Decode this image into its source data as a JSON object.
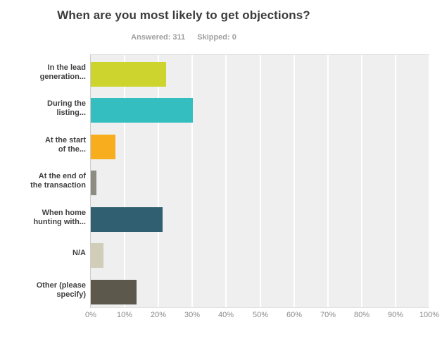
{
  "chart_data": {
    "type": "bar",
    "orientation": "horizontal",
    "title": "When are you most likely to get objections?",
    "answered": "Answered: 311",
    "skipped": "Skipped: 0",
    "categories": [
      "In the lead\ngeneration...",
      "During the\nlisting...",
      "At the start\nof the...",
      "At the end of\nthe transaction",
      "When home\nhunting with...",
      "N/A",
      "Other (please\nspecify)"
    ],
    "values": [
      22.2,
      30.2,
      7.2,
      1.6,
      21.2,
      3.8,
      13.5
    ],
    "bar_colors": [
      "#ccd42d",
      "#34bebf",
      "#f8ad1e",
      "#8c8c80",
      "#2f5f70",
      "#d0cdb8",
      "#5c594c"
    ],
    "xlabel": "",
    "ylabel": "",
    "xlim": [
      0,
      100
    ],
    "xtick_labels": [
      "0%",
      "10%",
      "20%",
      "30%",
      "40%",
      "50%",
      "60%",
      "70%",
      "80%",
      "90%",
      "100%"
    ],
    "grid": true,
    "legend": false,
    "plot_background": "#efefef",
    "gridline_color": "#ffffff"
  }
}
